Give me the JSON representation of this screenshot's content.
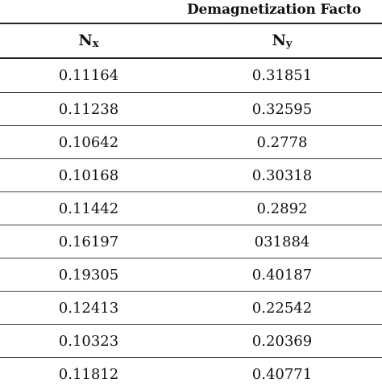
{
  "table": {
    "group_header": "Demagnetization Facto",
    "columns": [
      {
        "base": "N",
        "sub": "x"
      },
      {
        "base": "N",
        "sub": "y"
      }
    ],
    "rows": [
      [
        "0.11164",
        "0.31851"
      ],
      [
        "0.11238",
        "0.32595"
      ],
      [
        "0.10642",
        "0.2778"
      ],
      [
        "0.10168",
        "0.30318"
      ],
      [
        "0.11442",
        "0.2892"
      ],
      [
        "0.16197",
        "031884"
      ],
      [
        "0.19305",
        "0.40187"
      ],
      [
        "0.12413",
        "0.22542"
      ],
      [
        "0.10323",
        "0.20369"
      ],
      [
        "0.11812",
        "0.40771"
      ]
    ]
  }
}
